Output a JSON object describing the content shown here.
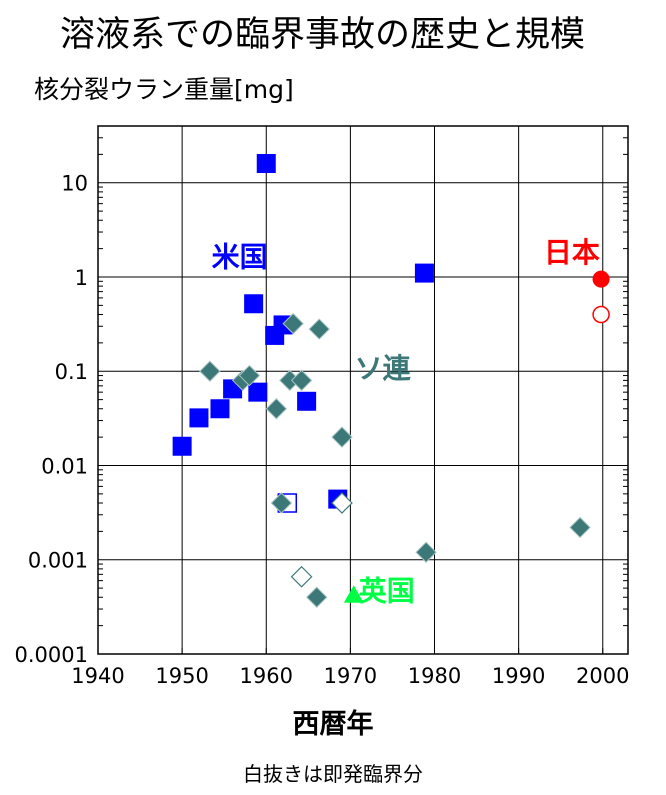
{
  "chart_data": {
    "type": "scatter",
    "title": "溶液系での臨界事故の歴史と規模",
    "ylabel": "核分裂ウラン重量[mg]",
    "xlabel": "西暦年",
    "note": "白抜きは即発臨界分",
    "y_scale": "log",
    "xlim": [
      1940,
      2003
    ],
    "ylim": [
      0.0001,
      40
    ],
    "grid": true,
    "x_ticks": [
      1940,
      1950,
      1960,
      1970,
      1980,
      1990,
      2000
    ],
    "y_ticks": [
      {
        "value": 0.0001,
        "label": "0.0001"
      },
      {
        "value": 0.001,
        "label": "0.001"
      },
      {
        "value": 0.01,
        "label": "0.01"
      },
      {
        "value": 0.1,
        "label": "0.1"
      },
      {
        "value": 1,
        "label": "1"
      },
      {
        "value": 10,
        "label": "10"
      }
    ],
    "annotations": [
      {
        "text": "米国",
        "x": 1953.5,
        "y": 1.3,
        "color": "#0000ff"
      },
      {
        "text": "ソ連",
        "x": 1970.5,
        "y": 0.085,
        "color": "#3c7878"
      },
      {
        "text": "日本",
        "x": 1993,
        "y": 1.45,
        "color": "#ff0000"
      },
      {
        "text": "英国",
        "x": 1971,
        "y": 0.00037,
        "color": "#00ff44"
      }
    ],
    "series": [
      {
        "color": "#0000ff",
        "marker": "square",
        "points": [
          {
            "x": 1960,
            "y": 16
          },
          {
            "x": 1958.5,
            "y": 0.52
          },
          {
            "x": 1961,
            "y": 0.24
          },
          {
            "x": 1962,
            "y": 0.31
          },
          {
            "x": 1978.8,
            "y": 1.1
          },
          {
            "x": 1956,
            "y": 0.065
          },
          {
            "x": 1959,
            "y": 0.06
          },
          {
            "x": 1954.5,
            "y": 0.04
          },
          {
            "x": 1952,
            "y": 0.032
          },
          {
            "x": 1950,
            "y": 0.016
          },
          {
            "x": 1964.8,
            "y": 0.048
          },
          {
            "x": 1968.5,
            "y": 0.0044
          }
        ]
      },
      {
        "color": "#0000ff",
        "marker": "square-open",
        "points": [
          {
            "x": 1962.5,
            "y": 0.004
          }
        ]
      },
      {
        "color": "#3c7878",
        "marker": "diamond",
        "points": [
          {
            "x": 1953.3,
            "y": 0.1
          },
          {
            "x": 1957.2,
            "y": 0.08
          },
          {
            "x": 1958,
            "y": 0.09
          },
          {
            "x": 1963.2,
            "y": 0.32
          },
          {
            "x": 1966.3,
            "y": 0.28
          },
          {
            "x": 1962.8,
            "y": 0.08
          },
          {
            "x": 1964.2,
            "y": 0.08
          },
          {
            "x": 1961.2,
            "y": 0.04
          },
          {
            "x": 1969,
            "y": 0.02
          },
          {
            "x": 1961.8,
            "y": 0.004
          },
          {
            "x": 1966,
            "y": 0.0004
          },
          {
            "x": 1979,
            "y": 0.0012
          },
          {
            "x": 1997.3,
            "y": 0.0022
          }
        ]
      },
      {
        "color": "#3c7878",
        "marker": "diamond-open",
        "points": [
          {
            "x": 1969,
            "y": 0.004
          },
          {
            "x": 1964.2,
            "y": 0.00066
          }
        ]
      },
      {
        "color": "#ff0000",
        "marker": "circle",
        "points": [
          {
            "x": 1999.8,
            "y": 0.95
          }
        ]
      },
      {
        "color": "#ff0000",
        "marker": "circle-open",
        "points": [
          {
            "x": 1999.8,
            "y": 0.4
          }
        ]
      },
      {
        "color": "#00ff44",
        "marker": "triangle",
        "points": [
          {
            "x": 1970.4,
            "y": 0.00042
          }
        ]
      }
    ]
  }
}
